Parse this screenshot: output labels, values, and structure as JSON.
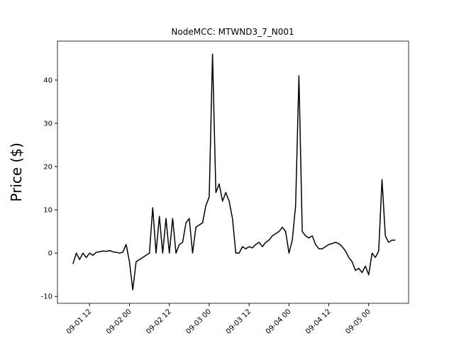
{
  "chart_data": {
    "type": "line",
    "title": "NodeMCC: MTWND3_7_N001",
    "y_label": "Price ($)",
    "x": [
      "09-01 07:00",
      "09-01 08:00",
      "09-01 09:00",
      "09-01 10:00",
      "09-01 11:00",
      "09-01 12:00",
      "09-01 13:00",
      "09-01 14:00",
      "09-01 15:00",
      "09-01 16:00",
      "09-01 17:00",
      "09-01 18:00",
      "09-01 19:00",
      "09-01 20:00",
      "09-01 21:00",
      "09-01 22:00",
      "09-01 23:00",
      "09-02 00:00",
      "09-02 01:00",
      "09-02 02:00",
      "09-02 03:00",
      "09-02 04:00",
      "09-02 05:00",
      "09-02 06:00",
      "09-02 07:00",
      "09-02 08:00",
      "09-02 09:00",
      "09-02 10:00",
      "09-02 11:00",
      "09-02 12:00",
      "09-02 13:00",
      "09-02 14:00",
      "09-02 15:00",
      "09-02 16:00",
      "09-02 17:00",
      "09-02 18:00",
      "09-02 19:00",
      "09-02 20:00",
      "09-02 21:00",
      "09-02 22:00",
      "09-02 23:00",
      "09-03 00:00",
      "09-03 01:00",
      "09-03 02:00",
      "09-03 03:00",
      "09-03 04:00",
      "09-03 05:00",
      "09-03 06:00",
      "09-03 07:00",
      "09-03 08:00",
      "09-03 09:00",
      "09-03 10:00",
      "09-03 11:00",
      "09-03 12:00",
      "09-03 13:00",
      "09-03 14:00",
      "09-03 15:00",
      "09-03 16:00",
      "09-03 17:00",
      "09-03 18:00",
      "09-03 19:00",
      "09-03 20:00",
      "09-03 21:00",
      "09-03 22:00",
      "09-03 23:00",
      "09-04 00:00",
      "09-04 01:00",
      "09-04 02:00",
      "09-04 03:00",
      "09-04 04:00",
      "09-04 05:00",
      "09-04 06:00",
      "09-04 07:00",
      "09-04 08:00",
      "09-04 09:00",
      "09-04 10:00",
      "09-04 11:00",
      "09-04 12:00",
      "09-04 13:00",
      "09-04 14:00",
      "09-04 15:00",
      "09-04 16:00",
      "09-04 17:00",
      "09-04 18:00",
      "09-04 19:00",
      "09-04 20:00",
      "09-04 21:00",
      "09-04 22:00",
      "09-04 23:00",
      "09-05 00:00",
      "09-05 01:00",
      "09-05 02:00",
      "09-05 03:00",
      "09-05 04:00",
      "09-05 05:00",
      "09-05 06:00",
      "09-05 07:00",
      "09-05 08:00"
    ],
    "series": [
      {
        "color": "#000000",
        "values": [
          -2.5,
          0,
          -1.5,
          0,
          -1,
          0,
          -0.5,
          0.2,
          0.3,
          0.5,
          0.4,
          0.6,
          0.3,
          0.2,
          0,
          0.2,
          2,
          -2,
          -8.5,
          -2,
          -1.5,
          -1,
          -0.5,
          0,
          10.5,
          0,
          8.5,
          0,
          8,
          0,
          8,
          0,
          2,
          2.5,
          7,
          8,
          0,
          6,
          6.5,
          7,
          11,
          13,
          46,
          14,
          16,
          12,
          14,
          12,
          8,
          0,
          0,
          1.5,
          1,
          1.5,
          1.2,
          2,
          2.5,
          1.5,
          2.5,
          3,
          4,
          4.5,
          5,
          6,
          5,
          0,
          3,
          11,
          41,
          5,
          4,
          3.5,
          4,
          2,
          1,
          1,
          1.5,
          2,
          2.2,
          2.5,
          2.2,
          1.5,
          0.5,
          -1,
          -2,
          -4,
          -3.5,
          -4.5,
          -3,
          -5,
          0,
          -1,
          0.5,
          17,
          4,
          2.5,
          3,
          3
        ]
      }
    ],
    "xlim": [
      "09-01 02:20",
      "09-05 12:00"
    ],
    "xticks": [
      {
        "value": "09-01 12:00",
        "label": "09-01 12"
      },
      {
        "value": "09-02 00:00",
        "label": "09-02 00"
      },
      {
        "value": "09-02 12:00",
        "label": "09-02 12"
      },
      {
        "value": "09-03 00:00",
        "label": "09-03 00"
      },
      {
        "value": "09-03 12:00",
        "label": "09-03 12"
      },
      {
        "value": "09-04 00:00",
        "label": "09-04 00"
      },
      {
        "value": "09-04 12:00",
        "label": "09-04 12"
      },
      {
        "value": "09-05 00:00",
        "label": "09-05 00"
      }
    ],
    "ylim": [
      -11.6,
      49
    ],
    "yticks": [
      -10,
      0,
      10,
      20,
      30,
      40
    ]
  }
}
